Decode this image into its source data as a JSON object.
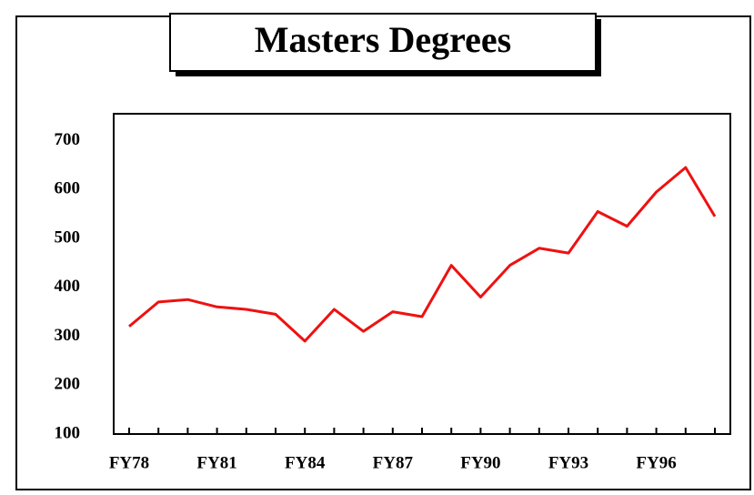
{
  "chart_data": {
    "type": "line",
    "title": "Masters Degrees",
    "categories": [
      "FY78",
      null,
      null,
      "FY81",
      null,
      null,
      "FY84",
      null,
      null,
      "FY87",
      null,
      null,
      "FY90",
      null,
      null,
      "FY93",
      null,
      null,
      "FY96",
      null,
      null
    ],
    "series": [
      {
        "name": null,
        "color": "#ee1111",
        "values": [
          320,
          370,
          375,
          360,
          355,
          345,
          290,
          355,
          310,
          350,
          340,
          445,
          380,
          445,
          480,
          470,
          555,
          525,
          595,
          645,
          545
        ]
      }
    ],
    "ylim": [
      100,
      755
    ],
    "yticks": [
      100,
      200,
      300,
      400,
      500,
      600,
      700
    ],
    "grid": false
  }
}
